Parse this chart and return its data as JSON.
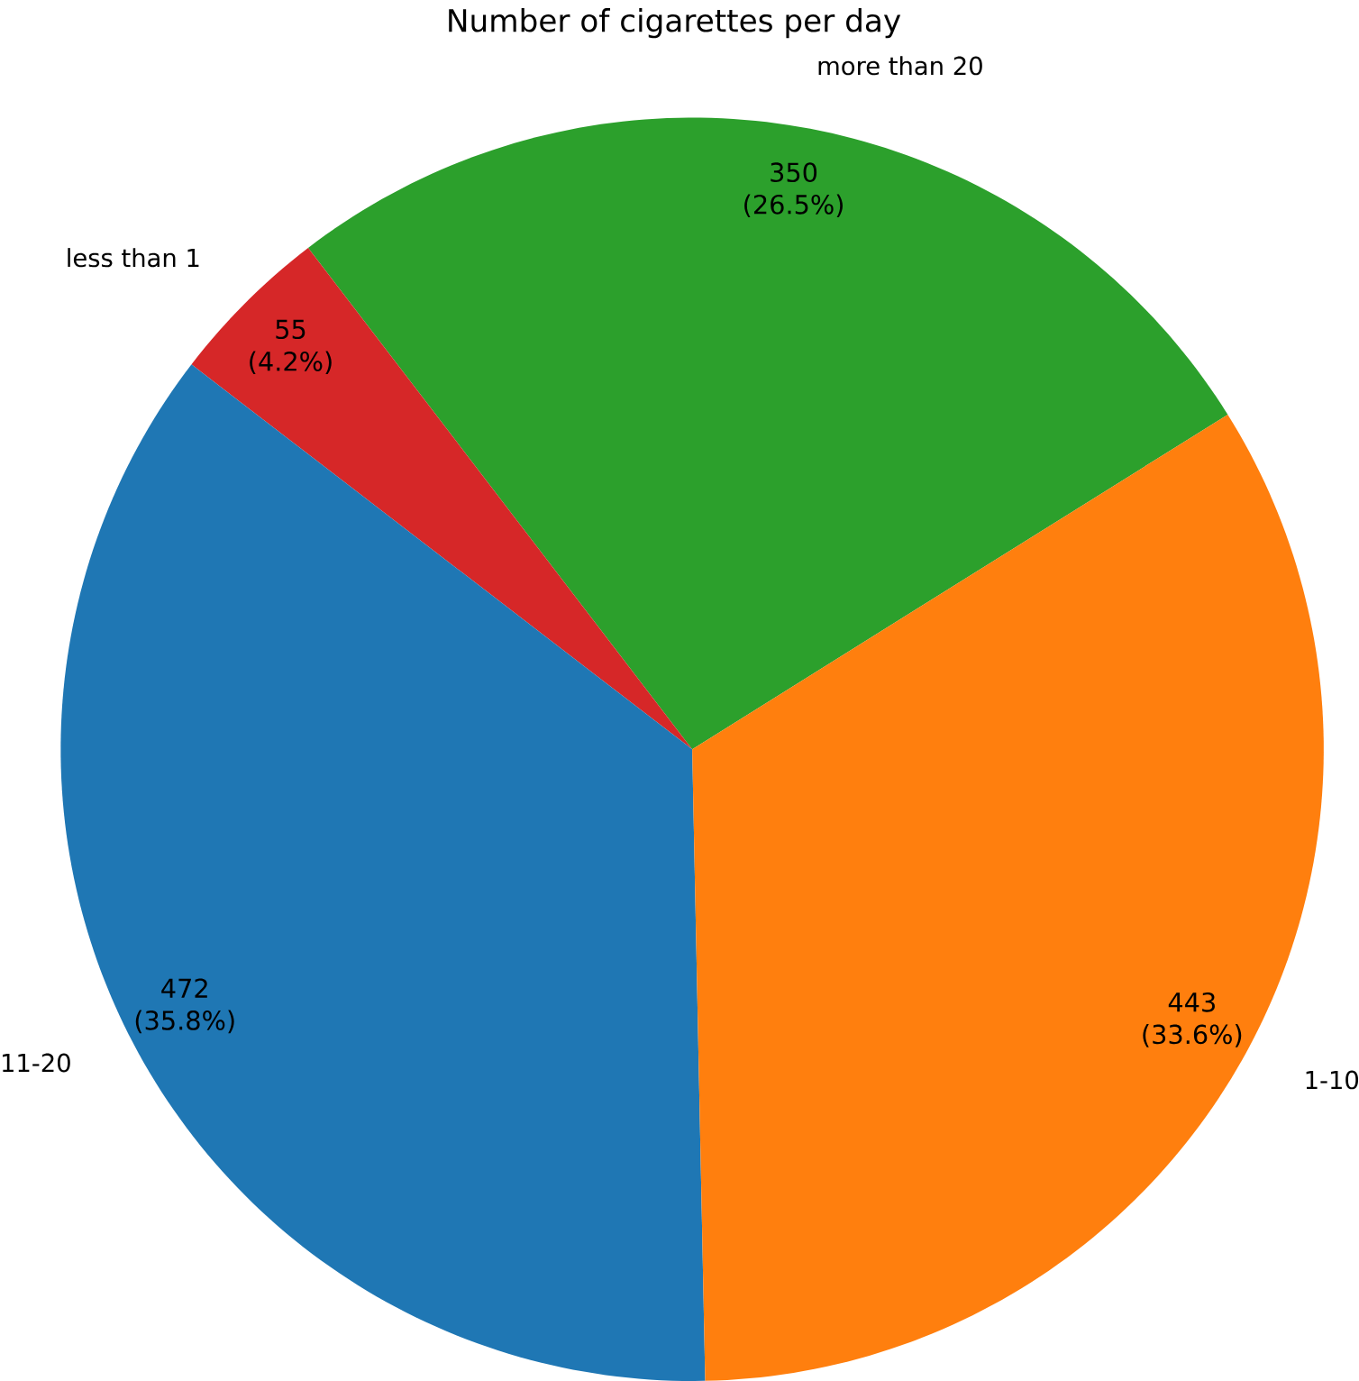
{
  "chart_data": {
    "type": "pie",
    "title": "Number of cigarettes per day",
    "categories": [
      "more than 20",
      "less than 1",
      "11-20",
      "1-10"
    ],
    "values": [
      350,
      55,
      472,
      443
    ],
    "colors": [
      "#2ca02c",
      "#d62728",
      "#1f77b4",
      "#ff7f0e"
    ],
    "value_labels": [
      "350 (26.5%)",
      "55 (4.2%)",
      "472 (35.8%)",
      "443 (33.6%)"
    ]
  }
}
